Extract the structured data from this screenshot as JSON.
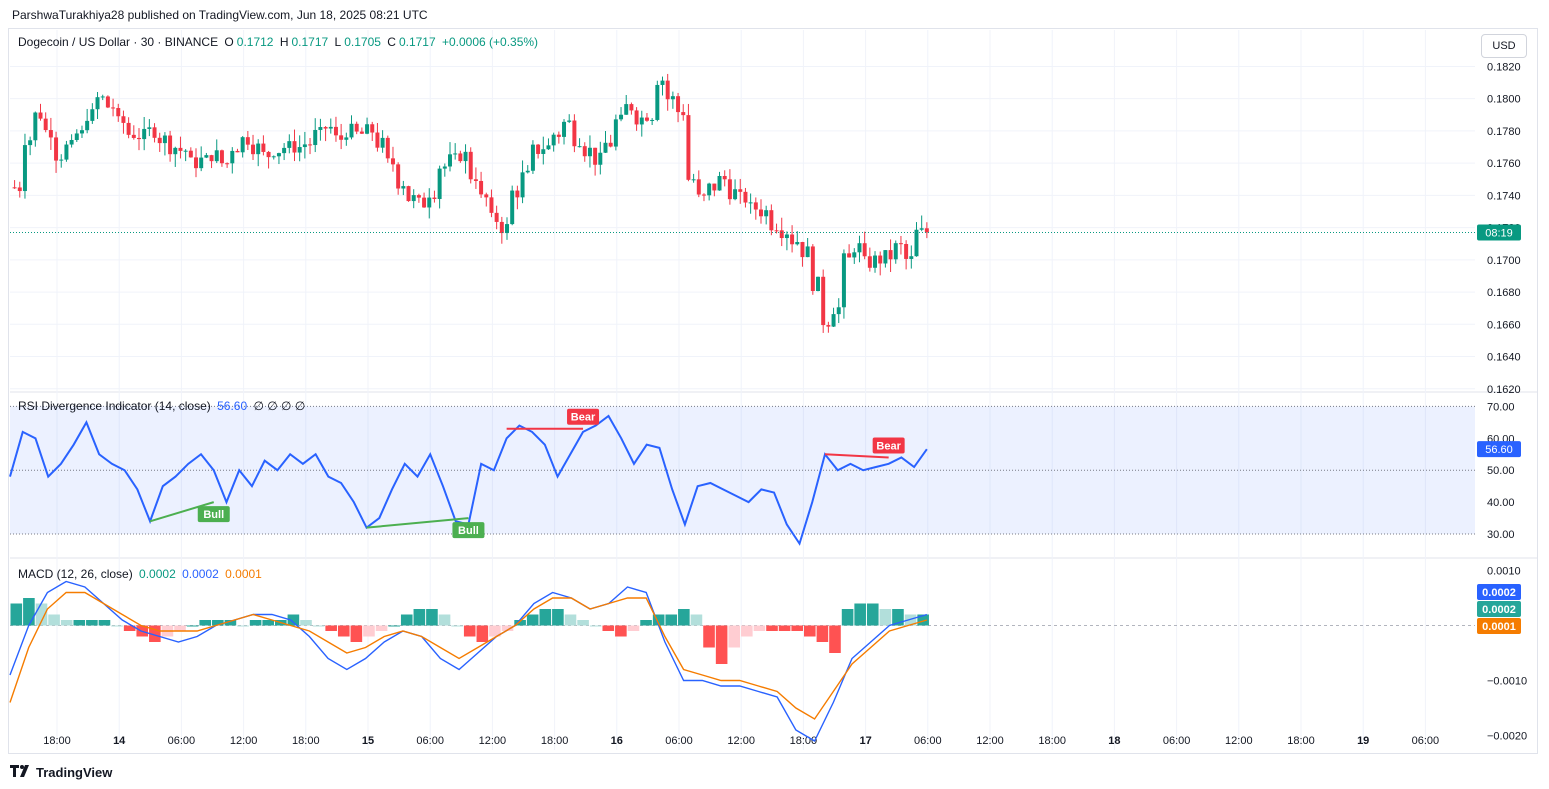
{
  "publisher": "ParshwaTurakhiya28 published on TradingView.com, Jun 18, 2025 08:21 UTC",
  "header": {
    "symbol": "Dogecoin / US Dollar · 30 · BINANCE",
    "o_label": "O",
    "o_value": "0.1712",
    "h_label": "H",
    "h_value": "0.1717",
    "l_label": "L",
    "l_value": "0.1705",
    "c_label": "C",
    "c_value": "0.1717",
    "change": "+0.0006 (+0.35%)"
  },
  "currency_button": "USD",
  "price_tag": "08:19",
  "rsi_legend": {
    "name": "RSI Divergence Indicator (14, close)",
    "value": "56.60",
    "extras": "∅ ∅ ∅ ∅"
  },
  "rsi_tag": "56.60",
  "macd_legend": {
    "name": "MACD (12, 26, close)",
    "v1": "0.0002",
    "v2": "0.0002",
    "v3": "0.0001"
  },
  "macd_tags": [
    "0.0002",
    "0.0002",
    "0.0001"
  ],
  "footer": {
    "logo_icon": "tradingview-logo-icon",
    "brand": "TradingView"
  },
  "colors": {
    "up": "#089981",
    "down": "#f23645",
    "rsi": "#2962ff",
    "signal": "#f57c00",
    "bull": "#4caf50",
    "bear": "#f23645"
  },
  "chart_data": [
    {
      "type": "candlestick",
      "title": "Dogecoin / US Dollar · 30 · BINANCE",
      "x_ticks": [
        "18:00",
        "14",
        "06:00",
        "12:00",
        "18:00",
        "15",
        "06:00",
        "12:00",
        "18:00",
        "16",
        "06:00",
        "12:00",
        "18:00",
        "17",
        "06:00",
        "12:00",
        "18:00",
        "18",
        "06:00",
        "12:00",
        "18:00",
        "19",
        "06:00"
      ],
      "y_ticks": [
        "0.1620",
        "0.1640",
        "0.1660",
        "0.1680",
        "0.1700",
        "0.1720",
        "0.1740",
        "0.1760",
        "0.1780",
        "0.1800",
        "0.1820"
      ],
      "ylim": [
        0.1618,
        0.1824
      ],
      "bars_per_tick": 12,
      "path_closes": [
        0.1745,
        0.1775,
        0.179,
        0.178,
        0.1765,
        0.177,
        0.1778,
        0.179,
        0.18,
        0.1795,
        0.1785,
        0.1778,
        0.1777,
        0.178,
        0.1775,
        0.177,
        0.1768,
        0.176,
        0.1762,
        0.1765,
        0.176,
        0.177,
        0.1775,
        0.177,
        0.1765,
        0.1768,
        0.177,
        0.177,
        0.1772,
        0.1778,
        0.1782,
        0.1775,
        0.178,
        0.1778,
        0.178,
        0.1772,
        0.176,
        0.1748,
        0.1738,
        0.1735,
        0.1742,
        0.1758,
        0.1762,
        0.1765,
        0.1752,
        0.1738,
        0.1725,
        0.172,
        0.1742,
        0.1752,
        0.1768,
        0.177,
        0.1778,
        0.1785,
        0.1775,
        0.1768,
        0.1762,
        0.1772,
        0.1786,
        0.1795,
        0.1788,
        0.179,
        0.1812,
        0.18,
        0.1792,
        0.175,
        0.1738,
        0.1745,
        0.175,
        0.1742,
        0.1738,
        0.1732,
        0.173,
        0.1722,
        0.1718,
        0.1712,
        0.1705,
        0.1685,
        0.1662,
        0.167,
        0.17,
        0.1708,
        0.1698,
        0.17,
        0.1702,
        0.1708,
        0.17,
        0.1717
      ],
      "last_close": 0.1717
    },
    {
      "type": "line",
      "title": "RSI Divergence Indicator (14, close)",
      "ylim": [
        25,
        72
      ],
      "y_ticks": [
        "30.00",
        "40.00",
        "50.00",
        "60.00",
        "70.00"
      ],
      "band": [
        30,
        70
      ],
      "midline": 50,
      "values": [
        48,
        62,
        60,
        48,
        52,
        58,
        65,
        55,
        52,
        50,
        44,
        34,
        45,
        48,
        52,
        55,
        50,
        40,
        50,
        45,
        53,
        50,
        55,
        52,
        55,
        48,
        46,
        40,
        32,
        35,
        44,
        52,
        48,
        55,
        45,
        34,
        33,
        52,
        50,
        60,
        64,
        62,
        58,
        48,
        55,
        62,
        64,
        67,
        60,
        52,
        58,
        57,
        44,
        33,
        45,
        46,
        44,
        42,
        40,
        44,
        43,
        33,
        27,
        40,
        55,
        50,
        52,
        50,
        51,
        52,
        54,
        51,
        56.6
      ],
      "divergences": [
        {
          "label": "Bull",
          "from": [
            11,
            34
          ],
          "to": [
            16,
            40
          ]
        },
        {
          "label": "Bull",
          "from": [
            28,
            32
          ],
          "to": [
            36,
            35
          ]
        },
        {
          "label": "Bear",
          "from": [
            39,
            63
          ],
          "to": [
            45,
            63
          ]
        },
        {
          "label": "Bear",
          "from": [
            64,
            55
          ],
          "to": [
            69,
            54
          ]
        }
      ]
    },
    {
      "type": "histogram+line",
      "title": "MACD (12, 26, close)",
      "ylim": [
        -0.0023,
        0.0011
      ],
      "y_ticks": [
        "0.0010",
        "−0.0010",
        "−0.0020"
      ],
      "series": [
        {
          "name": "Histogram",
          "values": [
            0.0004,
            0.0005,
            0.0004,
            0.0002,
            0.0001,
            0.0001,
            0.0001,
            0.0001,
            0.0,
            -0.0001,
            -0.0002,
            -0.0003,
            -0.0002,
            -0.0001,
            0.0,
            0.0001,
            0.0001,
            0.0001,
            0.0,
            0.0001,
            0.0001,
            0.0001,
            0.0002,
            0.0001,
            0.0,
            -0.0001,
            -0.0002,
            -0.0003,
            -0.0002,
            -0.0001,
            0.0,
            0.0002,
            0.0003,
            0.0003,
            0.0002,
            0.0,
            -0.0002,
            -0.0003,
            -0.0002,
            -0.0001,
            0.0001,
            0.0002,
            0.0003,
            0.0003,
            0.0002,
            0.0001,
            0.0,
            -0.0001,
            -0.0002,
            -0.0001,
            0.0001,
            0.0002,
            0.0002,
            0.0003,
            0.0002,
            -0.0004,
            -0.0007,
            -0.0004,
            -0.0002,
            -0.0001,
            -0.0001,
            -0.0001,
            -0.0001,
            -0.0002,
            -0.0003,
            -0.0005,
            0.0003,
            0.0004,
            0.0004,
            0.0003,
            0.0003,
            0.0002,
            0.0002
          ]
        },
        {
          "name": "MACD",
          "values": [
            -0.0009,
            0.0,
            0.0006,
            0.0008,
            0.0007,
            0.0004,
            0.0001,
            -0.0001,
            -0.0002,
            -0.0003,
            -0.0002,
            0.0,
            0.0001,
            0.0002,
            0.0002,
            0.0001,
            -0.0002,
            -0.0006,
            -0.0008,
            -0.0006,
            -0.0003,
            -0.0001,
            -0.0002,
            -0.0006,
            -0.0008,
            -0.0005,
            -0.0002,
            0.0,
            0.0004,
            0.0006,
            0.0005,
            0.0003,
            0.0004,
            0.0007,
            0.0006,
            -0.0003,
            -0.001,
            -0.001,
            -0.0011,
            -0.0011,
            -0.0012,
            -0.0013,
            -0.0019,
            -0.0021,
            -0.0014,
            -0.0006,
            -0.0003,
            0.0,
            0.0001,
            0.0002
          ]
        },
        {
          "name": "Signal",
          "values": [
            -0.0014,
            -0.0004,
            0.0003,
            0.0006,
            0.0006,
            0.0004,
            0.0002,
            0.0,
            -0.0001,
            -0.0001,
            -0.0001,
            0.0,
            0.0001,
            0.0002,
            0.0001,
            0.0,
            -0.0001,
            -0.0003,
            -0.0005,
            -0.0004,
            -0.0002,
            -0.0001,
            -0.0002,
            -0.0004,
            -0.0006,
            -0.0004,
            -0.0002,
            0.0,
            0.0003,
            0.0005,
            0.0005,
            0.0003,
            0.0004,
            0.0005,
            0.0005,
            -0.0002,
            -0.0008,
            -0.0009,
            -0.001,
            -0.001,
            -0.0011,
            -0.0012,
            -0.0015,
            -0.0017,
            -0.0012,
            -0.0007,
            -0.0004,
            -0.0001,
            0.0,
            0.0001
          ]
        }
      ]
    }
  ]
}
